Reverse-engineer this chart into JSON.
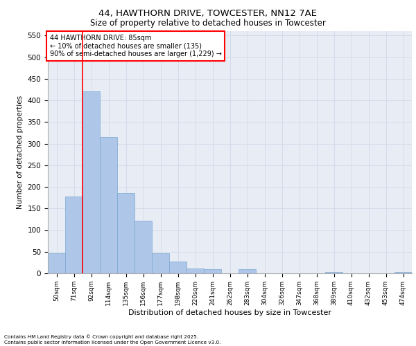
{
  "title_line1": "44, HAWTHORN DRIVE, TOWCESTER, NN12 7AE",
  "title_line2": "Size of property relative to detached houses in Towcester",
  "xlabel": "Distribution of detached houses by size in Towcester",
  "ylabel": "Number of detached properties",
  "bar_categories": [
    "50sqm",
    "71sqm",
    "92sqm",
    "114sqm",
    "135sqm",
    "156sqm",
    "177sqm",
    "198sqm",
    "220sqm",
    "241sqm",
    "262sqm",
    "283sqm",
    "304sqm",
    "326sqm",
    "347sqm",
    "368sqm",
    "389sqm",
    "410sqm",
    "432sqm",
    "453sqm",
    "474sqm"
  ],
  "bar_values": [
    46,
    177,
    421,
    315,
    186,
    122,
    46,
    27,
    12,
    10,
    0,
    10,
    0,
    0,
    0,
    0,
    3,
    0,
    0,
    0,
    4
  ],
  "bar_color": "#aec6e8",
  "bar_edge_color": "#7aa8d0",
  "vline_x": 1.5,
  "vline_color": "red",
  "annotation_text": "44 HAWTHORN DRIVE: 85sqm\n← 10% of detached houses are smaller (135)\n90% of semi-detached houses are larger (1,229) →",
  "annotation_box_color": "white",
  "annotation_box_edge_color": "red",
  "ylim": [
    0,
    560
  ],
  "yticks": [
    0,
    50,
    100,
    150,
    200,
    250,
    300,
    350,
    400,
    450,
    500,
    550
  ],
  "grid_color": "#d0d8e8",
  "background_color": "#e8ecf5",
  "footer_line1": "Contains HM Land Registry data © Crown copyright and database right 2025.",
  "footer_line2": "Contains public sector information licensed under the Open Government Licence v3.0."
}
